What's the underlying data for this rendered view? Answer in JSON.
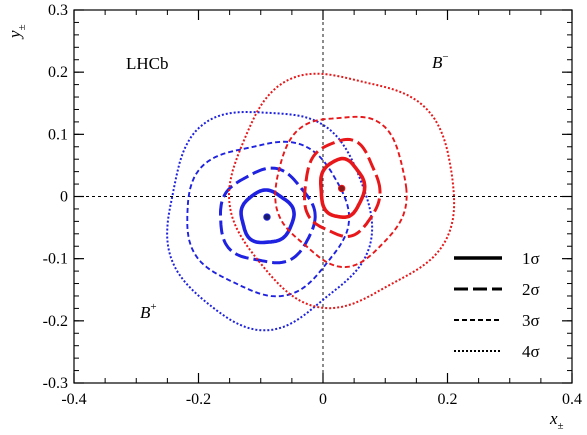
{
  "chart_data": {
    "type": "contour",
    "experiment_label": "LHCb",
    "xlabel": "x",
    "xlabel_sub": "±",
    "ylabel": "y",
    "ylabel_sub": "±",
    "xlim": [
      -0.4,
      0.4
    ],
    "ylim": [
      -0.3,
      0.3
    ],
    "x_ticks": [
      -0.4,
      -0.2,
      0,
      0.2,
      0.4
    ],
    "x_tick_labels": [
      "-0.4",
      "-0.2",
      "0",
      "0.2",
      "0.4"
    ],
    "y_ticks": [
      -0.3,
      -0.2,
      -0.1,
      0,
      0.1,
      0.2,
      0.3
    ],
    "y_tick_labels": [
      "-0.3",
      "-0.2",
      "-0.1",
      "0",
      "0.1",
      "0.2",
      "0.3"
    ],
    "grid": false,
    "reference_lines": {
      "x": 0,
      "y": 0
    },
    "series": [
      {
        "name": "B",
        "name_sup": "+",
        "color": "#1f22e0",
        "central_value": {
          "x": -0.09,
          "y": -0.033
        },
        "contours": [
          {
            "level": "1σ",
            "rx": 0.042,
            "ry": 0.042
          },
          {
            "level": "2σ",
            "rx": 0.076,
            "ry": 0.075
          },
          {
            "level": "3σ",
            "rx": 0.13,
            "ry": 0.122
          },
          {
            "level": "4σ",
            "rx": 0.163,
            "ry": 0.175
          }
        ]
      },
      {
        "name": "B",
        "name_sup": "−",
        "color": "#e8181a",
        "central_value": {
          "x": 0.03,
          "y": 0.013
        },
        "contours": [
          {
            "level": "1σ",
            "rx": 0.035,
            "ry": 0.047
          },
          {
            "level": "2σ",
            "rx": 0.06,
            "ry": 0.077
          },
          {
            "level": "3σ",
            "rx": 0.105,
            "ry": 0.12
          },
          {
            "level": "4σ",
            "rx": 0.18,
            "ry": 0.185
          }
        ]
      }
    ],
    "legend": {
      "placement": "bottom-right",
      "entries": [
        {
          "label": "1σ",
          "line_style": "solid"
        },
        {
          "label": "2σ",
          "line_style": "long-dash"
        },
        {
          "label": "3σ",
          "line_style": "short-dash"
        },
        {
          "label": "4σ",
          "line_style": "dotted"
        }
      ]
    }
  }
}
